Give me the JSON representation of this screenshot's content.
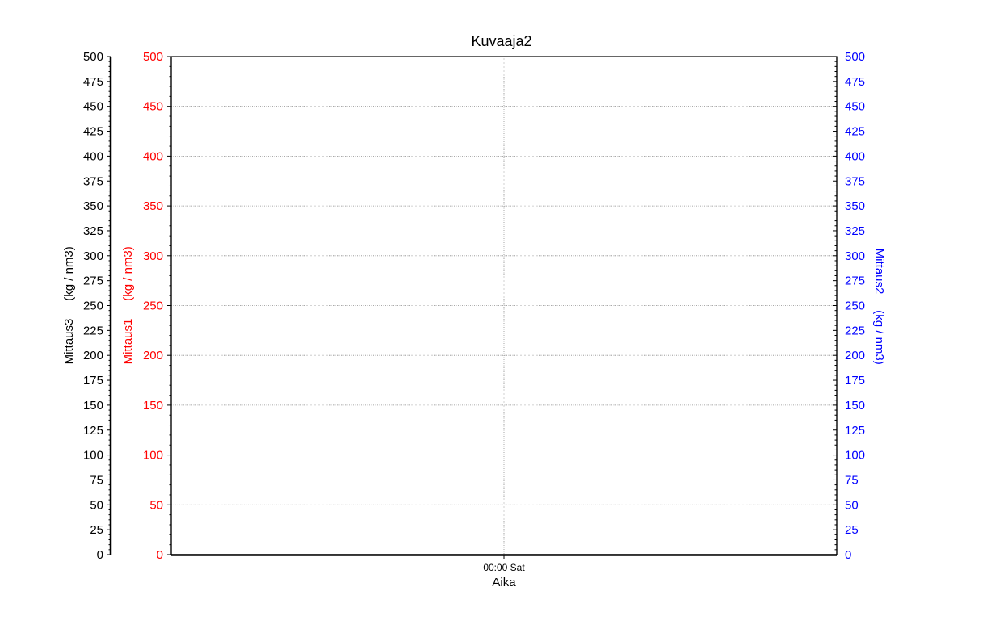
{
  "chart_data": {
    "type": "line",
    "title": "Kuvaaja2",
    "xlabel": "Aika",
    "x_ticks": [
      "00:00 Sat"
    ],
    "grid": true,
    "axes": [
      {
        "id": "mittaus3",
        "label": "Mittaus3",
        "unit": "(kg / nm3)",
        "color": "#000000",
        "side": "left-outer",
        "ylim": [
          0,
          500
        ],
        "step": 25
      },
      {
        "id": "mittaus1",
        "label": "Mittaus1",
        "unit": "(kg / nm3)",
        "color": "#ff0000",
        "side": "left-inner",
        "ylim": [
          0,
          500
        ],
        "step": 50
      },
      {
        "id": "mittaus2",
        "label": "Mittaus2",
        "unit": "(kg / nm3)",
        "color": "#0000ff",
        "side": "right",
        "ylim": [
          0,
          500
        ],
        "step": 25
      }
    ],
    "series": []
  }
}
